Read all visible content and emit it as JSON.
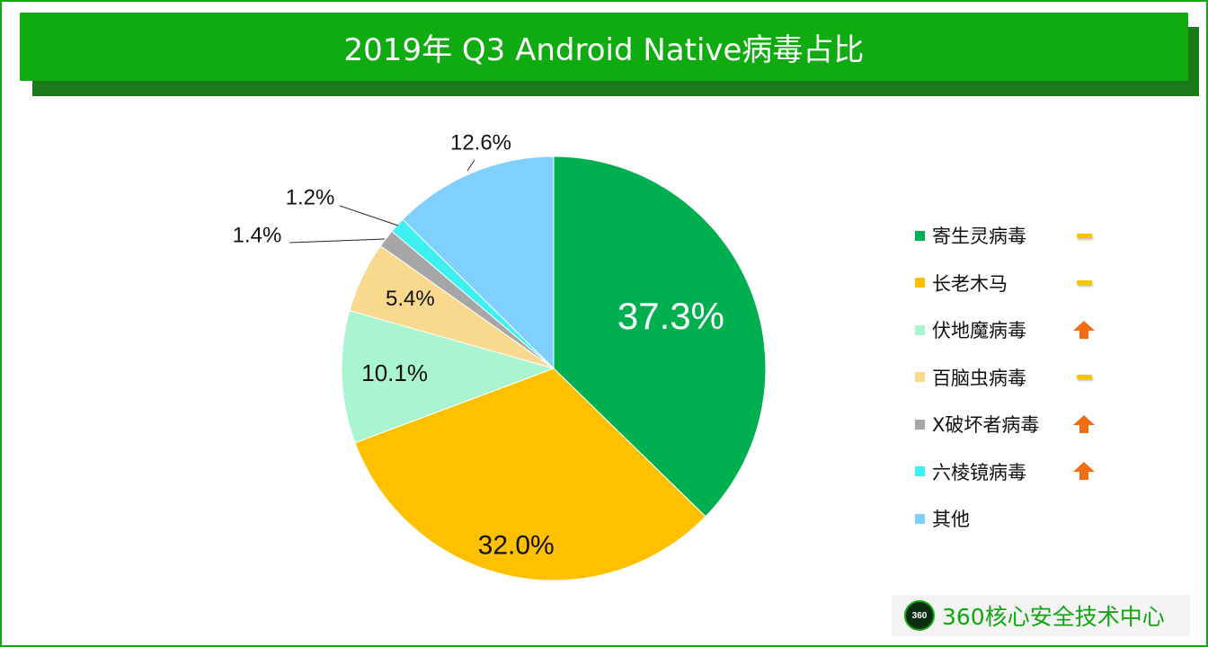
{
  "title": "2019年 Q3  Android Native病毒占比",
  "chart_data": {
    "type": "pie",
    "title": "2019年 Q3  Android Native病毒占比",
    "categories": [
      "寄生灵病毒",
      "长老木马",
      "伏地魔病毒",
      "百脑虫病毒",
      "X破坏者病毒",
      "六棱镜病毒",
      "其他"
    ],
    "values": [
      37.3,
      32.0,
      10.1,
      5.4,
      1.4,
      1.2,
      12.6
    ],
    "labels": [
      "37.3%",
      "32.0%",
      "10.1%",
      "5.4%",
      "1.4%",
      "1.2%",
      "12.6%"
    ],
    "colors": [
      "#00b050",
      "#ffc000",
      "#a9f5d0",
      "#f8d98e",
      "#a6a6a6",
      "#3ff0f0",
      "#7fd0ff"
    ],
    "trends": [
      "flat",
      "flat",
      "up",
      "flat",
      "up",
      "up",
      "none"
    ],
    "legend_position": "right"
  },
  "brand": {
    "logo_text": "360",
    "name": "360核心安全技术中心"
  }
}
